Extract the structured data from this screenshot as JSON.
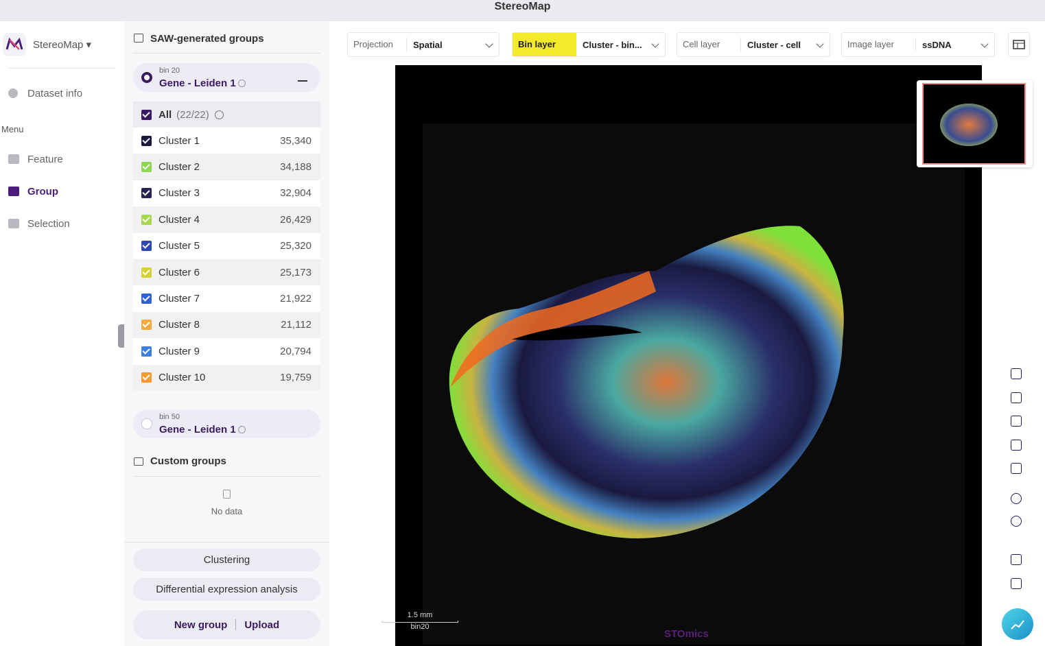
{
  "window_title": "StereoMap",
  "app": {
    "name": "StereoMap"
  },
  "nav": {
    "dataset_info": "Dataset info",
    "menu_label": "Menu",
    "items": [
      "Feature",
      "Group",
      "Selection"
    ],
    "active": 1
  },
  "panel": {
    "title": "SAW-generated groups",
    "groups": [
      {
        "bin": "bin 20",
        "name": "Gene - Leiden 1"
      },
      {
        "bin": "bin 50",
        "name": "Gene - Leiden 1"
      }
    ],
    "all": {
      "label": "All",
      "count": "(22/22)"
    },
    "clusters": [
      {
        "name": "Cluster 1",
        "count": "35,340",
        "color": "#1c1a3c"
      },
      {
        "name": "Cluster 2",
        "count": "34,188",
        "color": "#8fd651"
      },
      {
        "name": "Cluster 3",
        "count": "32,904",
        "color": "#272355"
      },
      {
        "name": "Cluster 4",
        "count": "26,429",
        "color": "#a5d84b"
      },
      {
        "name": "Cluster 5",
        "count": "25,320",
        "color": "#2f47b0"
      },
      {
        "name": "Cluster 6",
        "count": "25,173",
        "color": "#d5d137"
      },
      {
        "name": "Cluster 7",
        "count": "21,922",
        "color": "#3162d4"
      },
      {
        "name": "Cluster 8",
        "count": "21,112",
        "color": "#f3ab3d"
      },
      {
        "name": "Cluster 9",
        "count": "20,794",
        "color": "#3b7fe0"
      },
      {
        "name": "Cluster 10",
        "count": "19,759",
        "color": "#f39b32"
      }
    ],
    "custom_title": "Custom groups",
    "no_data": "No data",
    "buttons": [
      "Clustering",
      "Differential expression analysis"
    ],
    "new_group": "New group",
    "upload": "Upload"
  },
  "toolbar": {
    "projection": {
      "label": "Projection",
      "value": "Spatial"
    },
    "bin_layer": {
      "label": "Bin layer",
      "value": "Cluster - bin..."
    },
    "cell_layer": {
      "label": "Cell layer",
      "value": "Cluster - cell"
    },
    "image_layer": {
      "label": "Image layer",
      "value": "ssDNA"
    }
  },
  "viewer": {
    "scale_bar": "1.5 mm",
    "bin": "bin20",
    "watermark": "STOmics"
  }
}
